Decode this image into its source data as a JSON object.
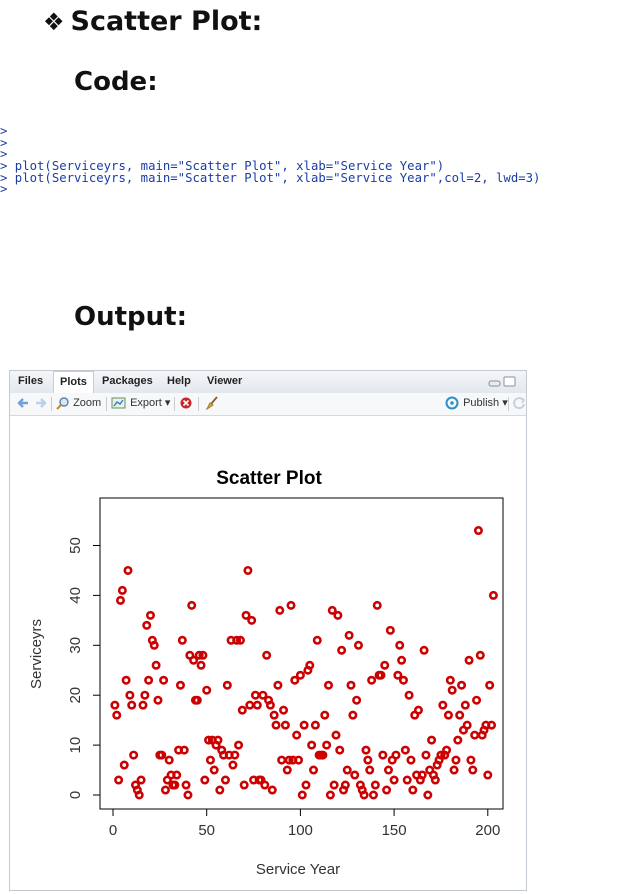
{
  "document": {
    "heading_bullet": "❖",
    "heading": "Scatter Plot:",
    "code_label": "Code:",
    "output_label": "Output:"
  },
  "console": {
    "lines": [
      "> ",
      "> ",
      "> ",
      "> plot(Serviceyrs, main=\"Scatter Plot\", xlab=\"Service Year\")",
      "> plot(Serviceyrs, main=\"Scatter Plot\", xlab=\"Service Year\",col=2, lwd=3)",
      "> "
    ]
  },
  "rstudio": {
    "tabs": [
      "Files",
      "Plots",
      "Packages",
      "Help",
      "Viewer"
    ],
    "active_tab": "Plots",
    "toolbar": {
      "zoom_label": "Zoom",
      "export_label": "Export ▾",
      "publish_label": "Publish ▾"
    },
    "icons": [
      "back-arrow-icon",
      "forward-arrow-icon",
      "zoom-icon",
      "export-icon",
      "clear-plot-icon",
      "broom-icon",
      "publish-icon",
      "refresh-icon"
    ]
  },
  "chart_data": {
    "type": "scatter",
    "title": "Scatter Plot",
    "xlabel": "Service Year",
    "ylabel": "Serviceyrs",
    "xlim": [
      0,
      200
    ],
    "ylim": [
      0,
      57
    ],
    "x_ticks": [
      0,
      50,
      100,
      150,
      200
    ],
    "y_ticks": [
      0,
      10,
      20,
      30,
      40,
      50
    ],
    "point_color": "#cc0000",
    "grid": false,
    "series": [
      {
        "x": [
          1,
          2,
          3,
          4,
          5,
          6,
          7,
          8,
          9,
          10,
          11,
          12,
          13,
          14,
          15,
          16,
          17,
          18,
          19,
          20,
          21,
          22,
          23,
          24,
          25,
          26,
          27,
          28,
          29,
          30,
          31,
          32,
          33,
          34,
          35,
          36,
          37,
          38,
          39,
          40,
          41,
          42,
          43,
          44,
          45,
          46,
          47,
          48,
          49,
          50,
          51,
          52,
          53,
          54,
          55,
          56,
          57,
          58,
          59,
          60,
          61,
          62,
          63,
          64,
          65,
          66,
          67,
          68,
          69,
          70,
          71,
          72,
          73,
          74,
          75,
          76,
          77,
          78,
          79,
          80,
          81,
          82,
          83,
          84,
          85,
          86,
          87,
          88,
          89,
          90,
          91,
          92,
          93,
          94,
          95,
          96,
          97,
          98,
          99,
          100,
          101,
          102,
          103,
          104,
          105,
          106,
          107,
          108,
          109,
          110,
          111,
          112,
          113,
          114,
          115,
          116,
          117,
          118,
          119,
          120,
          121,
          122,
          123,
          124,
          125,
          126,
          127,
          128,
          129,
          130,
          131,
          132,
          133,
          134,
          135,
          136,
          137,
          138,
          139,
          140,
          141,
          142,
          143,
          144,
          145,
          146,
          147,
          148,
          149,
          150,
          151,
          152,
          153,
          154,
          155,
          156,
          157,
          158,
          159,
          160,
          161,
          162,
          163,
          164,
          165,
          166,
          167,
          168,
          169,
          170,
          171,
          172,
          173,
          174,
          175,
          176,
          177,
          178,
          179,
          180,
          181,
          182,
          183,
          184,
          185,
          186,
          187,
          188,
          189,
          190,
          191,
          192,
          193,
          194,
          195,
          196,
          197,
          198,
          199,
          200,
          201,
          202,
          203
        ],
        "y": [
          18,
          16,
          3,
          39,
          41,
          6,
          23,
          45,
          20,
          18,
          8,
          2,
          1,
          0,
          3,
          18,
          20,
          34,
          23,
          36,
          31,
          30,
          26,
          19,
          8,
          8,
          23,
          1,
          3,
          7,
          4,
          2,
          2,
          4,
          9,
          22,
          31,
          9,
          2,
          0,
          28,
          38,
          27,
          19,
          19,
          28,
          26,
          28,
          3,
          21,
          11,
          7,
          11,
          5,
          10,
          11,
          1,
          9,
          8,
          3,
          22,
          8,
          31,
          6,
          8,
          31,
          10,
          31,
          17,
          2,
          36,
          45,
          18,
          35,
          3,
          20,
          18,
          3,
          3,
          20,
          2,
          28,
          19,
          18,
          1,
          16,
          14,
          22,
          37,
          7,
          17,
          14,
          5,
          7,
          38,
          7,
          23,
          12,
          7,
          24,
          0,
          14,
          2,
          25,
          26,
          10,
          5,
          14,
          31,
          8,
          8,
          8,
          16,
          10,
          22,
          0,
          37,
          2,
          12,
          36,
          9,
          29,
          1,
          2,
          5,
          32,
          22,
          16,
          4,
          19,
          30,
          2,
          1,
          0,
          9,
          7,
          5,
          23,
          0,
          2,
          38,
          24,
          24,
          8,
          26,
          1,
          5,
          33,
          7,
          3,
          8,
          24,
          30,
          27,
          23,
          9,
          3,
          20,
          7,
          1,
          16,
          4,
          17,
          3,
          4,
          29,
          8,
          0,
          5,
          11,
          4,
          3,
          6,
          7,
          8,
          18,
          8,
          9,
          16,
          23,
          21,
          5,
          7,
          11,
          16,
          22,
          13,
          18,
          14,
          27,
          7,
          5,
          12,
          19,
          53,
          28,
          12,
          13,
          14,
          4,
          22,
          14,
          40
        ]
      }
    ]
  }
}
